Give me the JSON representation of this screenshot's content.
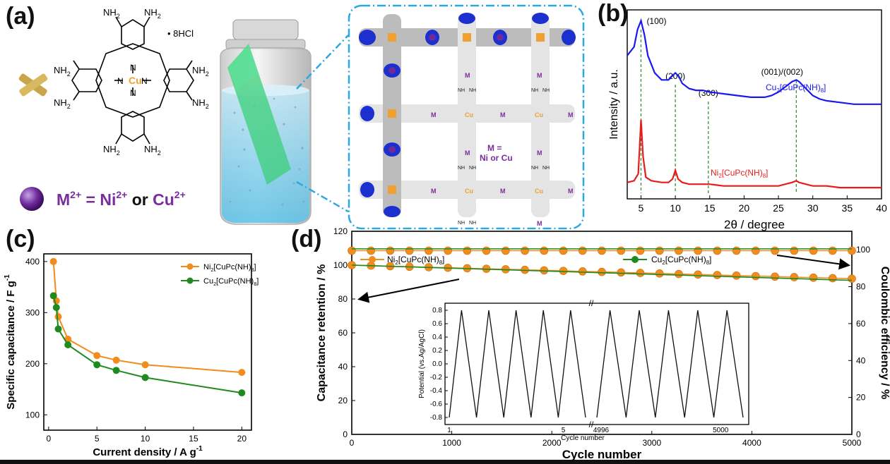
{
  "panel_a": {
    "label": "(a)",
    "salt": "• 8HCl",
    "metal_center": "Cu",
    "amine": "NH",
    "amine_sub": "2",
    "ring_n": "N",
    "legend_prefix": "M",
    "legend_sup": "2+",
    "legend_eq": " = ",
    "legend_ni": "Ni",
    "legend_or": " or ",
    "legend_cu": "Cu",
    "mof_m_label": "M =",
    "mof_m_options": "Ni or Cu",
    "mof_metal": "Cu",
    "mof_node": "M",
    "mof_nh": "NH",
    "colors": {
      "purple": "#7a2d9c",
      "orange": "#f0a030",
      "blue": "#1c2fcf",
      "cyan": "#29a9e0",
      "green": "#3ccf78"
    }
  },
  "chart_data": [
    {
      "panel": "(b)",
      "type": "line",
      "xlabel": "2",
      "xlabel_glyph": "θ",
      "xlabel_suffix": "/ degree",
      "ylabel": "Intensity / a.u.",
      "xlim": [
        3,
        40
      ],
      "xticks": [
        5,
        10,
        15,
        20,
        25,
        30,
        35,
        40
      ],
      "peaks": [
        {
          "label": "(100)",
          "x": 5.0
        },
        {
          "label": "(200)",
          "x": 10.0
        },
        {
          "label": "(300)",
          "x": 14.8
        },
        {
          "label": "(001)/(002)",
          "x": 27.6
        }
      ],
      "series": [
        {
          "name": "Cu",
          "name_sub": "2",
          "name_rest": "[CuPc(NH)",
          "name_sub2": "8",
          "name_end": "]",
          "color": "#1a1af0",
          "x": [
            3,
            4,
            4.5,
            5,
            5.5,
            6,
            7,
            8,
            9,
            9.5,
            10,
            10.5,
            11,
            12,
            13,
            14,
            15,
            17,
            19,
            21,
            23,
            24,
            25,
            26,
            27,
            27.6,
            28,
            29,
            30,
            31,
            32,
            34,
            36,
            38,
            40
          ],
          "y": [
            0.8,
            0.85,
            0.95,
            1.0,
            0.92,
            0.8,
            0.7,
            0.66,
            0.66,
            0.68,
            0.7,
            0.68,
            0.64,
            0.61,
            0.6,
            0.6,
            0.59,
            0.58,
            0.57,
            0.56,
            0.56,
            0.57,
            0.59,
            0.62,
            0.65,
            0.66,
            0.65,
            0.61,
            0.57,
            0.55,
            0.54,
            0.53,
            0.52,
            0.52,
            0.52
          ]
        },
        {
          "name": "Ni",
          "name_sub": "2",
          "name_rest": "[CuPc(NH)",
          "name_sub2": "8",
          "name_end": "]",
          "color": "#e81c1c",
          "x": [
            3,
            4,
            4.6,
            5,
            5.3,
            5.7,
            6.5,
            8,
            9,
            9.6,
            10,
            10.4,
            11,
            12,
            14,
            15,
            17,
            19,
            21,
            23,
            25,
            26,
            27,
            27.6,
            28,
            29,
            30,
            32,
            34,
            36,
            38,
            40
          ],
          "y": [
            0.07,
            0.08,
            0.12,
            0.43,
            0.22,
            0.1,
            0.08,
            0.07,
            0.07,
            0.09,
            0.14,
            0.09,
            0.07,
            0.06,
            0.06,
            0.06,
            0.05,
            0.05,
            0.05,
            0.05,
            0.05,
            0.06,
            0.07,
            0.08,
            0.07,
            0.06,
            0.05,
            0.05,
            0.04,
            0.04,
            0.04,
            0.04
          ]
        }
      ]
    },
    {
      "panel": "(c)",
      "type": "line",
      "xlabel": "Current density / A g",
      "xlabel_sup": "-1",
      "ylabel": "Specific capacitance / F g",
      "ylabel_sup": "-1",
      "xlim": [
        -0.5,
        21
      ],
      "ylim": [
        70,
        415
      ],
      "xticks": [
        0,
        5,
        10,
        15,
        20
      ],
      "yticks": [
        100,
        200,
        300,
        400
      ],
      "series": [
        {
          "name": "Ni",
          "name_sub": "2",
          "name_rest": "[CuPc(NH)",
          "name_sub2": "8",
          "name_end": "]",
          "color": "#f28c1c",
          "x": [
            0.5,
            0.8,
            1,
            2,
            5,
            7,
            10,
            20
          ],
          "y": [
            400,
            323,
            292,
            248,
            216,
            207,
            198,
            183
          ]
        },
        {
          "name": "Cu",
          "name_sub": "2",
          "name_rest": "[CuPc(NH)",
          "name_sub2": "8",
          "name_end": "]",
          "color": "#1f8a1f",
          "x": [
            0.5,
            0.8,
            1,
            2,
            5,
            7,
            10,
            20
          ],
          "y": [
            333,
            310,
            268,
            237,
            198,
            187,
            173,
            143
          ]
        }
      ]
    },
    {
      "panel": "(d)",
      "type": "scatter",
      "xlabel": "Cycle number",
      "ylabel": "Capacitance retention / %",
      "ylabel_right": "Coulombic efficiency / %",
      "xlim": [
        0,
        5000
      ],
      "ylim": [
        0,
        120
      ],
      "ylim_right": [
        0,
        110
      ],
      "xticks": [
        0,
        1000,
        2000,
        3000,
        4000,
        5000
      ],
      "yticks": [
        0,
        20,
        40,
        60,
        80,
        100,
        120
      ],
      "yticks_right": [
        0,
        20,
        40,
        60,
        80,
        100
      ],
      "series": [
        {
          "name": "Ni",
          "name_sub": "2",
          "name_rest": "[CuPc(NH)",
          "name_sub2": "8",
          "name_end": "]",
          "color": "#f28c1c",
          "retention_start": 100,
          "retention_end": 92,
          "efficiency": 99.5
        },
        {
          "name": "Cu",
          "name_sub": "2",
          "name_rest": "[CuPc(NH)",
          "name_sub2": "8",
          "name_end": "]",
          "color": "#1f8a1f",
          "retention_start": 100,
          "retention_end": 91,
          "efficiency": 100.5
        }
      ],
      "inset": {
        "type": "line",
        "xlabel": "Cycle number",
        "ylabel": "Potential (vs.Ag/AgCl)",
        "yticks": [
          "0.8",
          "0.6",
          "0.4",
          "0.2",
          "0.0",
          "-0.2",
          "-0.4",
          "-0.6",
          "-0.8"
        ],
        "yrange": [
          -0.8,
          0.8
        ],
        "xticks": [
          "1",
          "5",
          "4996",
          "5000"
        ],
        "cycles_per_segment": 5
      }
    }
  ]
}
